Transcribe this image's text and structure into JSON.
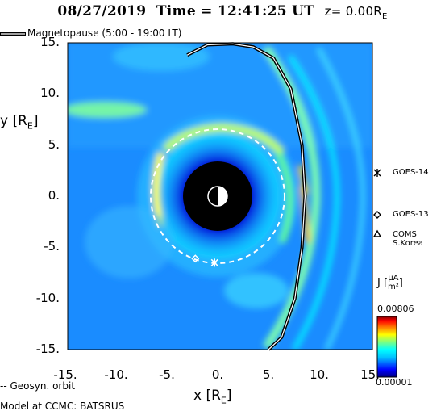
{
  "title": {
    "date": "08/27/2019",
    "time_label": "Time = 12:41:25 UT",
    "z_label": "z= 0.00R",
    "z_sub": "E"
  },
  "top_legend": {
    "magnetopause_label": "Magnetopause (5:00 - 19:00 LT)"
  },
  "bottom_legend": {
    "geosyn_label": "-- Geosyn. orbit",
    "model_label": "Model at CCMC: BATSRUS"
  },
  "chart_data": {
    "type": "heatmap",
    "title": "08/27/2019 Time = 12:41:25 UT z= 0.00RE",
    "xlabel": "x [RE]",
    "ylabel": "y [RE]",
    "xlim": [
      -15,
      15
    ],
    "ylim": [
      -15,
      15
    ],
    "xticks": [
      "-15.",
      "-10.",
      "-5.",
      "0.",
      "5.",
      "10.",
      "15."
    ],
    "yticks": [
      "15.",
      "10.",
      "5.",
      "0.",
      "-5.",
      "-10.",
      "-15."
    ],
    "colorbar": {
      "quantity": "J [μA/m²]",
      "max_label": "0.00806",
      "min_label": "0.00001",
      "colors": [
        "#000080",
        "#0000ff",
        "#00bfff",
        "#00ffff",
        "#7fff7f",
        "#ffff00",
        "#ff7f00",
        "#ff0000",
        "#800000"
      ]
    },
    "geosynchronous_orbit_radius": 6.6,
    "satellites": [
      {
        "name": "GOES-14",
        "marker": "asterisk",
        "x": -0.3,
        "y": -6.5
      },
      {
        "name": "GOES-13",
        "marker": "diamond",
        "x": -2.2,
        "y": -6.1
      },
      {
        "name": "COMS S.Korea",
        "marker": "triangle",
        "x": null,
        "y": null
      }
    ],
    "magnetopause": {
      "local_time_range": "5:00 - 19:00 LT",
      "points": [
        [
          -3.0,
          13.8
        ],
        [
          -1.0,
          14.8
        ],
        [
          1.5,
          14.9
        ],
        [
          3.5,
          14.6
        ],
        [
          5.5,
          13.5
        ],
        [
          7.2,
          10.5
        ],
        [
          8.3,
          5.0
        ],
        [
          8.6,
          0.0
        ],
        [
          8.3,
          -5.0
        ],
        [
          7.6,
          -10.0
        ],
        [
          6.3,
          -13.8
        ],
        [
          5.0,
          -15.0
        ]
      ]
    },
    "earth": {
      "radius": 3.3,
      "terminator": "day side right"
    }
  },
  "legend": {
    "goes14": "GOES-14",
    "goes13": "GOES-13",
    "coms_line1": "COMS",
    "coms_line2": "S.Korea"
  },
  "colors": {
    "background": "#00bfff",
    "plot_base": "#1e90ff"
  }
}
